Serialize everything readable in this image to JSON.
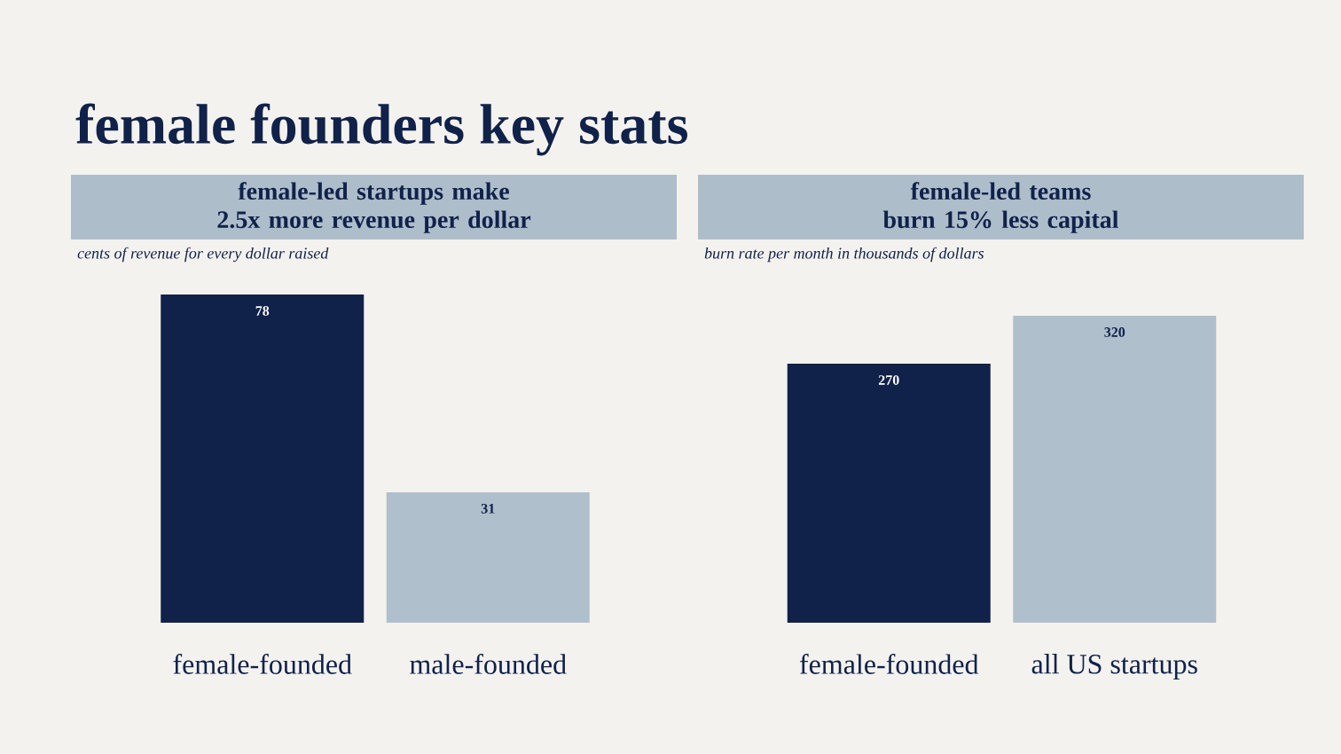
{
  "chart_data": [
    {
      "type": "bar",
      "title": "female-led startups make 2.5x more revenue per dollar",
      "subtitle": "cents of revenue for every dollar raised",
      "categories": [
        "female-founded",
        "male-founded"
      ],
      "values": [
        78,
        31
      ],
      "colors": [
        "#10224a",
        "#afbfcc"
      ],
      "data_labels": true,
      "annotations": [
        "female founders key stats"
      ]
    },
    {
      "type": "bar",
      "title": "female-led teams burn 15% less capital",
      "subtitle": "burn rate per month in thousands of dollars",
      "categories": [
        "female-founded",
        "all US startups"
      ],
      "values": [
        270,
        320
      ],
      "colors": [
        "#10224a",
        "#afbfcc"
      ],
      "data_labels": true
    }
  ]
}
